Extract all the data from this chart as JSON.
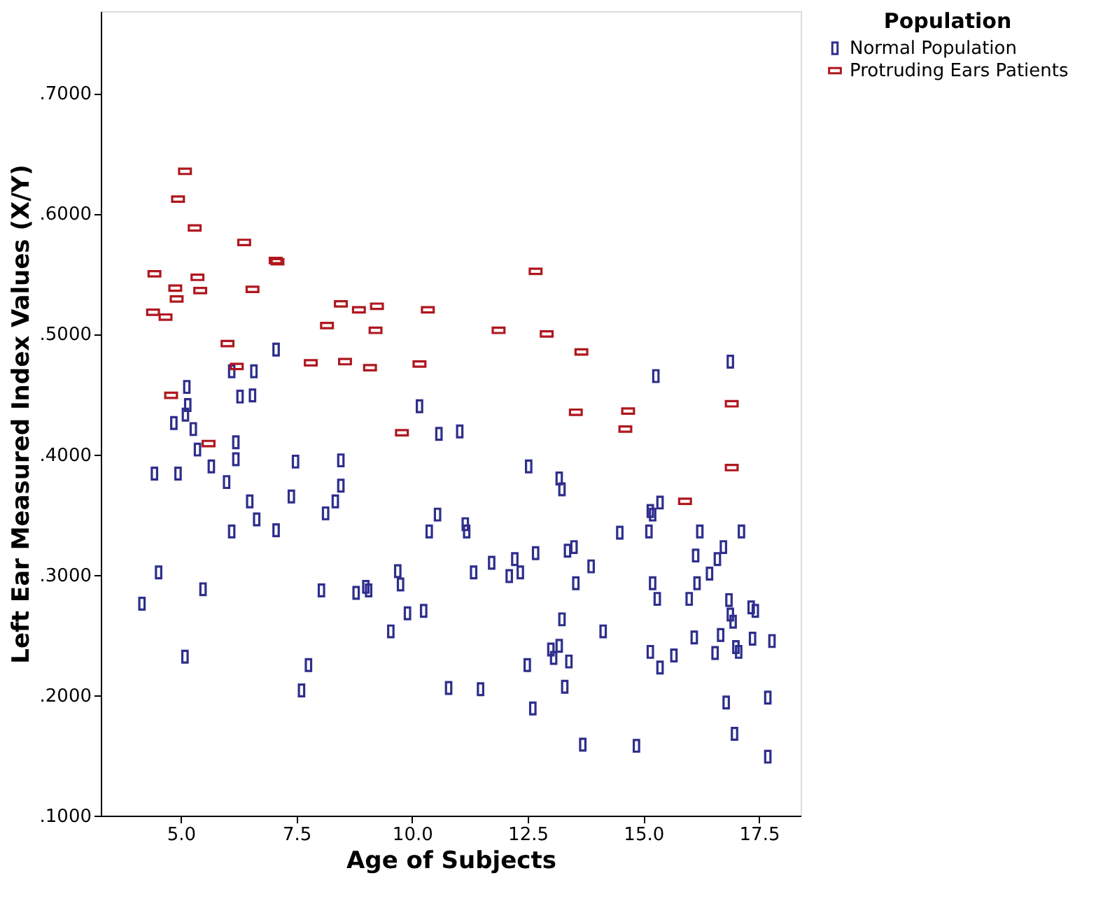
{
  "chart_data": {
    "type": "scatter",
    "xlabel": "Age of Subjects",
    "ylabel": "Left Ear Measured Index Values (X/Y)",
    "legend_title": "Population",
    "legend": "top right",
    "grid": false,
    "marker": "square",
    "xlim": [
      3.27,
      18.4
    ],
    "ylim": [
      0.1,
      0.768
    ],
    "xticks": [
      {
        "value": 5,
        "label": "5.0"
      },
      {
        "value": 7.5,
        "label": "7.5"
      },
      {
        "value": 10,
        "label": "10.0"
      },
      {
        "value": 12.5,
        "label": "12.5"
      },
      {
        "value": 15,
        "label": "15.0"
      },
      {
        "value": 17.5,
        "label": "17.5"
      }
    ],
    "yticks": [
      {
        "value": 0.1,
        "label": ".1000"
      },
      {
        "value": 0.2,
        "label": ".2000"
      },
      {
        "value": 0.3,
        "label": ".3000"
      },
      {
        "value": 0.4,
        "label": ".4000"
      },
      {
        "value": 0.5,
        "label": ".5000"
      },
      {
        "value": 0.6,
        "label": ".6000"
      },
      {
        "value": 0.7,
        "label": ".7000"
      }
    ],
    "series": [
      {
        "name": "Normal Population",
        "color": "#2e2e8c",
        "x": [
          7.06,
          16.88,
          6.1,
          6.58,
          15.27,
          5.13,
          6.28,
          6.55,
          5.15,
          10.16,
          5.1,
          4.85,
          5.27,
          10.58,
          11.03,
          6.19,
          5.36,
          6.19,
          8.46,
          7.48,
          12.52,
          5.66,
          4.43,
          4.94,
          13.18,
          5.99,
          8.46,
          13.24,
          6.49,
          7.39,
          8.34,
          15.36,
          15.15,
          15.2,
          6.64,
          8.13,
          10.55,
          11.15,
          11.18,
          6.1,
          7.06,
          10.37,
          14.49,
          15.12,
          16.22,
          17.12,
          16.13,
          16.73,
          16.6,
          16.43,
          16.16,
          15.99,
          15.2,
          15.3,
          16.85,
          16.88,
          16.94,
          17.33,
          17.42,
          16.1,
          16.67,
          16.55,
          17.0,
          17.06,
          17.36,
          17.78,
          15.15,
          15.66,
          15.36,
          16.79,
          17.69,
          16.97,
          17.69,
          14.85,
          13.69,
          12.61,
          13.3,
          10.79,
          11.48,
          12.49,
          13.0,
          13.06,
          13.18,
          13.24,
          13.39,
          14.13,
          11.33,
          11.72,
          12.1,
          12.22,
          12.34,
          12.67,
          13.36,
          13.5,
          13.54,
          13.87,
          4.52,
          5.48,
          4.16,
          5.09,
          8.04,
          8.79,
          9.0,
          9.06,
          9.69,
          9.75,
          9.9,
          10.25,
          9.54,
          7.76,
          7.61
        ],
        "values": [
          0.487,
          0.477,
          0.469,
          0.469,
          0.465,
          0.456,
          0.448,
          0.449,
          0.441,
          0.44,
          0.433,
          0.426,
          0.421,
          0.417,
          0.419,
          0.41,
          0.404,
          0.396,
          0.395,
          0.394,
          0.39,
          0.39,
          0.384,
          0.384,
          0.38,
          0.377,
          0.374,
          0.371,
          0.361,
          0.365,
          0.361,
          0.36,
          0.353,
          0.35,
          0.346,
          0.351,
          0.35,
          0.342,
          0.336,
          0.336,
          0.337,
          0.336,
          0.335,
          0.336,
          0.336,
          0.336,
          0.316,
          0.323,
          0.313,
          0.301,
          0.293,
          0.28,
          0.293,
          0.28,
          0.279,
          0.267,
          0.261,
          0.273,
          0.27,
          0.248,
          0.25,
          0.235,
          0.24,
          0.236,
          0.247,
          0.245,
          0.236,
          0.233,
          0.223,
          0.194,
          0.198,
          0.168,
          0.149,
          0.158,
          0.159,
          0.189,
          0.207,
          0.206,
          0.205,
          0.225,
          0.238,
          0.231,
          0.241,
          0.263,
          0.228,
          0.253,
          0.302,
          0.31,
          0.299,
          0.313,
          0.302,
          0.318,
          0.32,
          0.323,
          0.293,
          0.307,
          0.302,
          0.288,
          0.276,
          0.232,
          0.287,
          0.285,
          0.29,
          0.287,
          0.303,
          0.292,
          0.268,
          0.27,
          0.253,
          0.225,
          0.204
        ]
      },
      {
        "name": "Protruding Ears Patients",
        "color": "#b0171f",
        "x": [
          5.09,
          4.94,
          5.3,
          6.37,
          7.09,
          7.05,
          4.43,
          5.36,
          4.88,
          5.42,
          6.55,
          4.91,
          4.4,
          4.67,
          8.46,
          8.85,
          9.24,
          10.34,
          8.16,
          9.21,
          6.01,
          6.21,
          7.81,
          8.55,
          9.09,
          10.16,
          4.79,
          9.78,
          5.6,
          12.67,
          11.87,
          12.91,
          13.66,
          16.91,
          14.67,
          13.54,
          14.61,
          16.91,
          15.9
        ],
        "values": [
          0.635,
          0.612,
          0.588,
          0.576,
          0.56,
          0.561,
          0.55,
          0.547,
          0.538,
          0.536,
          0.537,
          0.529,
          0.518,
          0.514,
          0.525,
          0.52,
          0.523,
          0.52,
          0.507,
          0.503,
          0.492,
          0.473,
          0.476,
          0.477,
          0.472,
          0.475,
          0.449,
          0.418,
          0.409,
          0.552,
          0.503,
          0.5,
          0.485,
          0.442,
          0.436,
          0.435,
          0.421,
          0.389,
          0.361
        ]
      }
    ]
  }
}
